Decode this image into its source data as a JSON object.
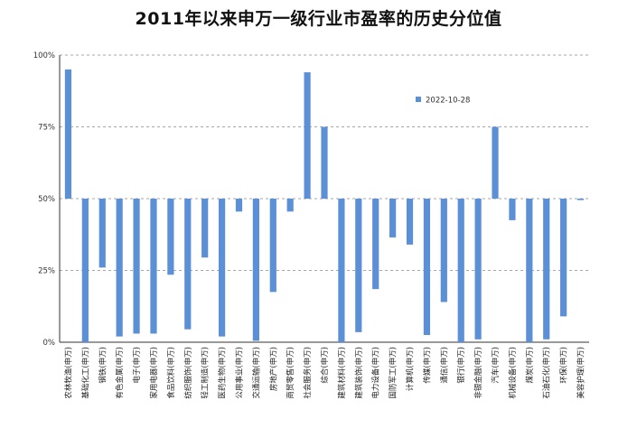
{
  "chart_data": {
    "type": "bar",
    "title": "2011年以来申万一级行业市盈率的历史分位值",
    "xlabel": "",
    "ylabel": "",
    "ylim": [
      0,
      100
    ],
    "baseline": 50,
    "yticks": [
      "0%",
      "25%",
      "50%",
      "75%",
      "100%"
    ],
    "ytick_values": [
      0,
      25,
      50,
      75,
      100
    ],
    "grid": true,
    "legend_position": "upper-right",
    "bar_color": "#5b8fd6",
    "categories": [
      "农林牧渔(申万)",
      "基础化工(申万)",
      "钢铁(申万)",
      "有色金属(申万)",
      "电子(申万)",
      "家用电器(申万)",
      "食品饮料(申万)",
      "纺织服饰(申万)",
      "轻工制造(申万)",
      "医药生物(申万)",
      "公用事业(申万)",
      "交通运输(申万)",
      "房地产(申万)",
      "商贸零售(申万)",
      "社会服务(申万)",
      "综合(申万)",
      "建筑材料(申万)",
      "建筑装饰(申万)",
      "电力设备(申万)",
      "国防军工(申万)",
      "计算机(申万)",
      "传媒(申万)",
      "通信(申万)",
      "银行(申万)",
      "非银金融(申万)",
      "汽车(申万)",
      "机械设备(申万)",
      "煤炭(申万)",
      "石油石化(申万)",
      "环保(申万)",
      "美容护理(申万)"
    ],
    "series": [
      {
        "name": "2022-10-28",
        "values": [
          95,
          0,
          26,
          2,
          3,
          3,
          23.5,
          4.5,
          29.5,
          2,
          45.5,
          0.5,
          17.5,
          45.5,
          94,
          75,
          0,
          3.5,
          18.5,
          36.5,
          34,
          2.5,
          14,
          0,
          1,
          75,
          42.5,
          0,
          1,
          9,
          49.5
        ]
      }
    ]
  }
}
